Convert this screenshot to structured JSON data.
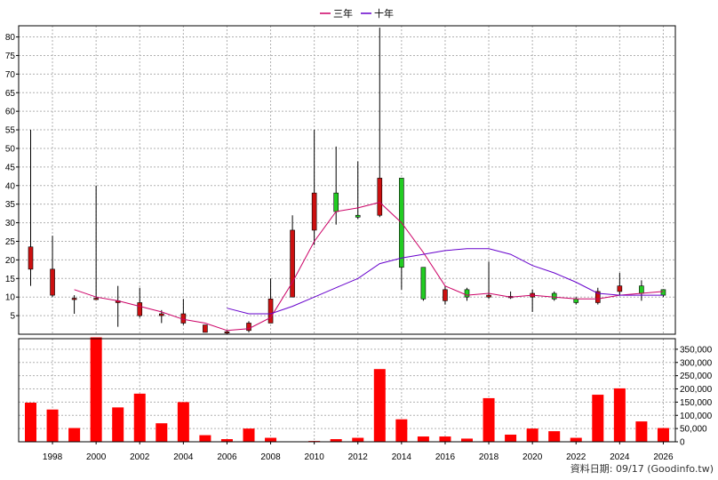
{
  "chart_data": {
    "type": "candlestick",
    "legend": [
      {
        "name": "三年",
        "color": "#cc0066"
      },
      {
        "name": "十年",
        "color": "#6600cc"
      }
    ],
    "legend_position": "top-center",
    "grid": true,
    "x_tick_labels": [
      "1998",
      "2000",
      "2002",
      "2004",
      "2006",
      "2008",
      "2010",
      "2012",
      "2014",
      "2016",
      "2018",
      "2020",
      "2022",
      "2024",
      "2026"
    ],
    "price_axis": {
      "ticks": [
        5,
        10,
        15,
        20,
        25,
        30,
        35,
        40,
        45,
        50,
        55,
        60,
        65,
        70,
        75,
        80
      ],
      "range": [
        0,
        83
      ]
    },
    "volume_axis": {
      "ticks": [
        "0",
        "50,000",
        "100,000",
        "150,000",
        "200,000",
        "250,000",
        "300,000",
        "350,000"
      ],
      "range": [
        0,
        390000
      ]
    },
    "candles": [
      {
        "year": 1997,
        "open": 17.5,
        "high": 55,
        "low": 13,
        "close": 23.5
      },
      {
        "year": 1998,
        "open": 10.5,
        "high": 26.5,
        "low": 10,
        "close": 17.5
      },
      {
        "year": 1999,
        "open": 9.5,
        "high": 10.5,
        "low": 5.5,
        "close": 9.5
      },
      {
        "year": 2000,
        "open": 9.5,
        "high": 40,
        "low": 9.5,
        "close": 9.5
      },
      {
        "year": 2001,
        "open": 8.5,
        "high": 13,
        "low": 2,
        "close": 9
      },
      {
        "year": 2002,
        "open": 5,
        "high": 12.5,
        "low": 4.5,
        "close": 8.5
      },
      {
        "year": 2003,
        "open": 5,
        "high": 6.5,
        "low": 3,
        "close": 5.5
      },
      {
        "year": 2004,
        "open": 3,
        "high": 9.5,
        "low": 2.5,
        "close": 5.5
      },
      {
        "year": 2005,
        "open": 0.5,
        "high": 2.5,
        "low": 0.5,
        "close": 2.5
      },
      {
        "year": 2006,
        "open": 0.5,
        "high": 1,
        "low": 0,
        "close": 0.5
      },
      {
        "year": 2007,
        "open": 1,
        "high": 3.5,
        "low": 0.5,
        "close": 3
      },
      {
        "year": 2008,
        "open": 3,
        "high": 15,
        "low": 3,
        "close": 9.5
      },
      {
        "year": 2009,
        "open": 10,
        "high": 32,
        "low": 10,
        "close": 28
      },
      {
        "year": 2010,
        "open": 28,
        "high": 55,
        "low": 24,
        "close": 38
      },
      {
        "year": 2011,
        "open": 38,
        "high": 50.5,
        "low": 29.5,
        "close": 33
      },
      {
        "year": 2012,
        "open": 32,
        "high": 46.5,
        "low": 31,
        "close": 31.5
      },
      {
        "year": 2013,
        "open": 32,
        "high": 82.5,
        "low": 31.5,
        "close": 42
      },
      {
        "year": 2014,
        "open": 42,
        "high": 42,
        "low": 12,
        "close": 18
      },
      {
        "year": 2015,
        "open": 18,
        "high": 18,
        "low": 9,
        "close": 9.5
      },
      {
        "year": 2016,
        "open": 9,
        "high": 13,
        "low": 8,
        "close": 12
      },
      {
        "year": 2017,
        "open": 12,
        "high": 12.5,
        "low": 9,
        "close": 10
      },
      {
        "year": 2018,
        "open": 10,
        "high": 19.5,
        "low": 9.5,
        "close": 10.5
      },
      {
        "year": 2019,
        "open": 10,
        "high": 11.5,
        "low": 9.5,
        "close": 10
      },
      {
        "year": 2020,
        "open": 10,
        "high": 12,
        "low": 6,
        "close": 11
      },
      {
        "year": 2021,
        "open": 11,
        "high": 11.5,
        "low": 9,
        "close": 9.5
      },
      {
        "year": 2022,
        "open": 9.5,
        "high": 10,
        "low": 8,
        "close": 8.5
      },
      {
        "year": 2023,
        "open": 8.5,
        "high": 12.5,
        "low": 8,
        "close": 11.5
      },
      {
        "year": 2024,
        "open": 11.5,
        "high": 16.5,
        "low": 10.5,
        "close": 13
      },
      {
        "year": 2025,
        "open": 13,
        "high": 14.5,
        "low": 9,
        "close": 11
      },
      {
        "year": 2026,
        "open": 12,
        "high": 12,
        "low": 10,
        "close": 10.5
      }
    ],
    "series": [
      {
        "name": "三年",
        "values": [
          {
            "year": 1999,
            "value": 12
          },
          {
            "year": 2000,
            "value": 10
          },
          {
            "year": 2001,
            "value": 9
          },
          {
            "year": 2002,
            "value": 7.5
          },
          {
            "year": 2003,
            "value": 6
          },
          {
            "year": 2004,
            "value": 4
          },
          {
            "year": 2005,
            "value": 3
          },
          {
            "year": 2006,
            "value": 1
          },
          {
            "year": 2007,
            "value": 1.5
          },
          {
            "year": 2008,
            "value": 4.5
          },
          {
            "year": 2009,
            "value": 14
          },
          {
            "year": 2010,
            "value": 25
          },
          {
            "year": 2011,
            "value": 33
          },
          {
            "year": 2012,
            "value": 34
          },
          {
            "year": 2013,
            "value": 35.5
          },
          {
            "year": 2014,
            "value": 30
          },
          {
            "year": 2015,
            "value": 22
          },
          {
            "year": 2016,
            "value": 13
          },
          {
            "year": 2017,
            "value": 10.5
          },
          {
            "year": 2018,
            "value": 11
          },
          {
            "year": 2019,
            "value": 10
          },
          {
            "year": 2020,
            "value": 10.5
          },
          {
            "year": 2021,
            "value": 10
          },
          {
            "year": 2022,
            "value": 9.5
          },
          {
            "year": 2023,
            "value": 9.5
          },
          {
            "year": 2024,
            "value": 10.5
          },
          {
            "year": 2025,
            "value": 11
          },
          {
            "year": 2026,
            "value": 11.5
          }
        ]
      },
      {
        "name": "十年",
        "values": [
          {
            "year": 2006,
            "value": 7
          },
          {
            "year": 2007,
            "value": 5.5
          },
          {
            "year": 2008,
            "value": 5.5
          },
          {
            "year": 2009,
            "value": 7.5
          },
          {
            "year": 2010,
            "value": 10
          },
          {
            "year": 2011,
            "value": 12.5
          },
          {
            "year": 2012,
            "value": 15
          },
          {
            "year": 2013,
            "value": 19
          },
          {
            "year": 2014,
            "value": 20.5
          },
          {
            "year": 2015,
            "value": 21.5
          },
          {
            "year": 2016,
            "value": 22.5
          },
          {
            "year": 2017,
            "value": 23
          },
          {
            "year": 2018,
            "value": 23
          },
          {
            "year": 2019,
            "value": 21.5
          },
          {
            "year": 2020,
            "value": 18.5
          },
          {
            "year": 2021,
            "value": 16.5
          },
          {
            "year": 2022,
            "value": 14
          },
          {
            "year": 2023,
            "value": 11
          },
          {
            "year": 2024,
            "value": 10.5
          },
          {
            "year": 2025,
            "value": 10.5
          },
          {
            "year": 2026,
            "value": 10.5
          }
        ]
      }
    ],
    "volume": [
      {
        "year": 1997,
        "value": 148000
      },
      {
        "year": 1998,
        "value": 122000
      },
      {
        "year": 1999,
        "value": 52000
      },
      {
        "year": 2000,
        "value": 395000
      },
      {
        "year": 2001,
        "value": 130000
      },
      {
        "year": 2002,
        "value": 182000
      },
      {
        "year": 2003,
        "value": 70000
      },
      {
        "year": 2004,
        "value": 150000
      },
      {
        "year": 2005,
        "value": 25000
      },
      {
        "year": 2006,
        "value": 10000
      },
      {
        "year": 2007,
        "value": 50000
      },
      {
        "year": 2008,
        "value": 15000
      },
      {
        "year": 2009,
        "value": 1500
      },
      {
        "year": 2010,
        "value": 3000
      },
      {
        "year": 2011,
        "value": 10000
      },
      {
        "year": 2012,
        "value": 15000
      },
      {
        "year": 2013,
        "value": 275000
      },
      {
        "year": 2014,
        "value": 85000
      },
      {
        "year": 2015,
        "value": 20000
      },
      {
        "year": 2016,
        "value": 20000
      },
      {
        "year": 2017,
        "value": 12000
      },
      {
        "year": 2018,
        "value": 165000
      },
      {
        "year": 2019,
        "value": 27000
      },
      {
        "year": 2020,
        "value": 50000
      },
      {
        "year": 2021,
        "value": 40000
      },
      {
        "year": 2022,
        "value": 15000
      },
      {
        "year": 2023,
        "value": 178000
      },
      {
        "year": 2024,
        "value": 202000
      },
      {
        "year": 2025,
        "value": 77000
      },
      {
        "year": 2026,
        "value": 52000
      }
    ],
    "colors": {
      "up": "#cc1010",
      "down": "#22cc22",
      "volume": "#ff0000",
      "grid": "#b0b0b0"
    },
    "source_label": "資料日期: 09/17  (Goodinfo.tw)"
  }
}
